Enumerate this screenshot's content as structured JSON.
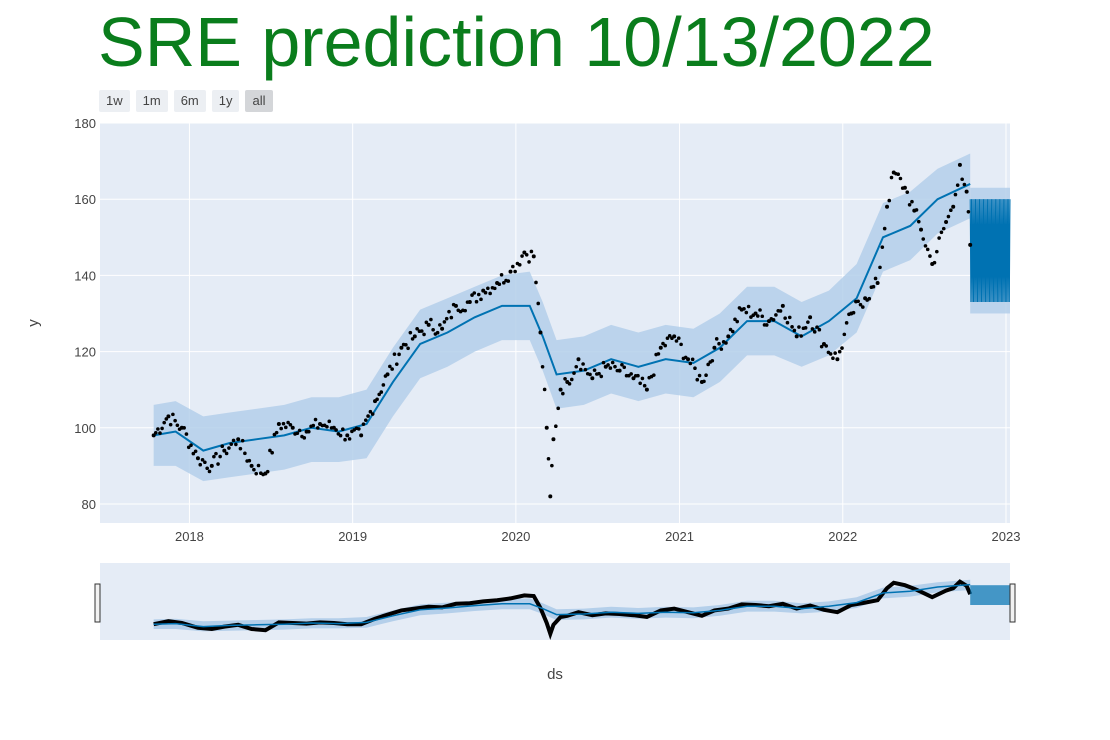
{
  "title": "SRE prediction 10/13/2022",
  "range_selector": [
    {
      "label": "1w",
      "active": false
    },
    {
      "label": "1m",
      "active": false
    },
    {
      "label": "6m",
      "active": false
    },
    {
      "label": "1y",
      "active": false
    },
    {
      "label": "all",
      "active": true
    }
  ],
  "colors": {
    "title": "#0a7d1c",
    "plot_bg": "#e5ecf6",
    "forecast_line": "#0072b2",
    "uncertainty_band": "#b4cfea",
    "actual_points": "#000000"
  },
  "chart_data": {
    "type": "scatter",
    "xlabel": "ds",
    "ylabel": "y",
    "xlim": [
      "2017-06-15",
      "2023-01-10"
    ],
    "ylim": [
      75,
      180
    ],
    "x_ticks": [
      "2018",
      "2019",
      "2020",
      "2021",
      "2022",
      "2023"
    ],
    "y_ticks": [
      80,
      100,
      120,
      140,
      160,
      180
    ],
    "grid": true,
    "legend": "none",
    "range_slider": true,
    "series": [
      {
        "kind": "observed_points",
        "x": [
          "2017-10-13",
          "2017-11-15",
          "2017-12-15",
          "2018-01-20",
          "2018-02-20",
          "2018-03-20",
          "2018-04-20",
          "2018-05-20",
          "2018-06-20",
          "2018-07-20",
          "2018-08-20",
          "2018-09-20",
          "2018-10-20",
          "2018-11-20",
          "2018-12-20",
          "2019-01-20",
          "2019-02-20",
          "2019-03-20",
          "2019-04-20",
          "2019-05-20",
          "2019-06-20",
          "2019-07-20",
          "2019-08-20",
          "2019-09-20",
          "2019-10-20",
          "2019-11-20",
          "2019-12-20",
          "2020-01-20",
          "2020-02-10",
          "2020-02-25",
          "2020-03-10",
          "2020-03-18",
          "2020-03-25",
          "2020-04-10",
          "2020-04-25",
          "2020-05-20",
          "2020-06-20",
          "2020-07-20",
          "2020-08-20",
          "2020-09-20",
          "2020-10-20",
          "2020-11-20",
          "2020-12-20",
          "2021-01-20",
          "2021-02-20",
          "2021-03-20",
          "2021-04-20",
          "2021-05-20",
          "2021-06-20",
          "2021-07-20",
          "2021-08-20",
          "2021-09-20",
          "2021-10-20",
          "2021-11-20",
          "2021-12-20",
          "2022-01-20",
          "2022-02-20",
          "2022-03-20",
          "2022-04-10",
          "2022-04-25",
          "2022-05-20",
          "2022-06-10",
          "2022-06-25",
          "2022-07-20",
          "2022-08-20",
          "2022-09-05",
          "2022-09-20",
          "2022-10-05",
          "2022-10-13"
        ],
        "y": [
          98,
          103,
          100,
          92,
          90,
          94,
          97,
          90,
          88,
          101,
          100,
          99,
          101,
          100,
          98,
          98,
          107,
          114,
          121,
          124,
          127,
          126,
          132,
          133,
          136,
          138,
          141,
          146,
          145,
          125,
          100,
          82,
          97,
          110,
          112,
          118,
          113,
          116,
          115,
          113,
          110,
          121,
          124,
          118,
          112,
          121,
          124,
          131,
          130,
          128,
          132,
          124,
          129,
          122,
          118,
          130,
          134,
          138,
          158,
          167,
          163,
          157,
          152,
          143,
          154,
          158,
          169,
          162,
          148
        ]
      },
      {
        "kind": "forecast",
        "x": [
          "2017-10-13",
          "2017-12-01",
          "2018-02-01",
          "2018-04-01",
          "2018-06-01",
          "2018-08-01",
          "2018-10-01",
          "2018-12-01",
          "2019-02-01",
          "2019-04-01",
          "2019-06-01",
          "2019-08-01",
          "2019-10-01",
          "2019-12-01",
          "2020-02-01",
          "2020-03-01",
          "2020-04-01",
          "2020-06-01",
          "2020-08-01",
          "2020-10-01",
          "2020-12-01",
          "2021-02-01",
          "2021-04-01",
          "2021-06-01",
          "2021-08-01",
          "2021-10-01",
          "2021-12-01",
          "2022-02-01",
          "2022-04-01",
          "2022-06-01",
          "2022-08-01",
          "2022-10-13"
        ],
        "yhat": [
          98,
          99,
          94,
          96,
          97,
          98,
          100,
          99,
          101,
          112,
          122,
          125,
          129,
          132,
          132,
          124,
          114,
          115,
          118,
          116,
          118,
          117,
          121,
          128,
          128,
          124,
          128,
          134,
          150,
          153,
          160,
          164
        ],
        "yhat_lower": [
          90,
          90,
          86,
          87,
          88,
          89,
          91,
          91,
          92,
          103,
          113,
          116,
          120,
          123,
          123,
          115,
          105,
          106,
          109,
          107,
          109,
          108,
          112,
          119,
          119,
          116,
          119,
          125,
          141,
          144,
          151,
          155
        ],
        "yhat_upper": [
          106,
          107,
          103,
          104,
          105,
          106,
          108,
          108,
          110,
          121,
          131,
          134,
          137,
          140,
          141,
          133,
          123,
          124,
          127,
          125,
          127,
          126,
          130,
          137,
          137,
          133,
          136,
          143,
          159,
          162,
          168,
          172
        ]
      },
      {
        "kind": "future_forecast",
        "x": [
          "2022-10-13",
          "2023-01-10"
        ],
        "yhat_range": [
          133,
          160
        ],
        "yhat_center": 148,
        "band": [
          130,
          163
        ]
      }
    ]
  }
}
